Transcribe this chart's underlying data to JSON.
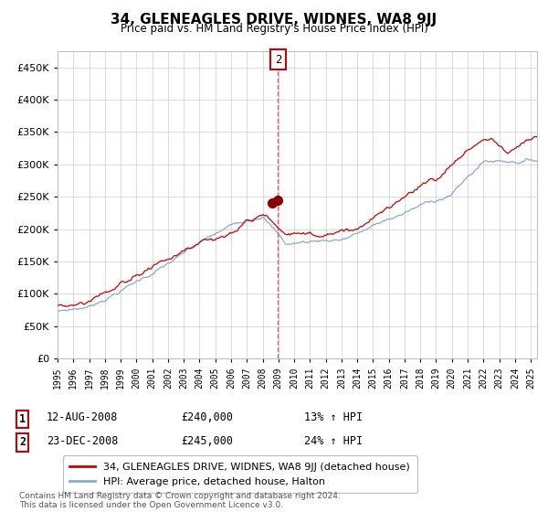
{
  "title": "34, GLENEAGLES DRIVE, WIDNES, WA8 9JJ",
  "subtitle": "Price paid vs. HM Land Registry's House Price Index (HPI)",
  "hpi_label": "HPI: Average price, detached house, Halton",
  "property_label": "34, GLENEAGLES DRIVE, WIDNES, WA8 9JJ (detached house)",
  "red_color": "#cc0000",
  "blue_color": "#88aacc",
  "dashed_color": "#dd4444",
  "annotation_box_color": "#cc0000",
  "background_color": "#ffffff",
  "grid_color": "#cccccc",
  "ylim": [
    0,
    475000
  ],
  "yticks": [
    0,
    50000,
    100000,
    150000,
    200000,
    250000,
    300000,
    350000,
    400000,
    450000
  ],
  "sale_date_1": 2008.617,
  "sale_date_2": 2008.981,
  "sale_price_1": 240000,
  "sale_price_2": 245000,
  "dashed_line_x": 2008.98,
  "annotation_box_label": "2",
  "xmin": 1995.0,
  "xmax": 2025.4,
  "xticks": [
    1995,
    1996,
    1997,
    1998,
    1999,
    2000,
    2001,
    2002,
    2003,
    2004,
    2005,
    2006,
    2007,
    2008,
    2009,
    2010,
    2011,
    2012,
    2013,
    2014,
    2015,
    2016,
    2017,
    2018,
    2019,
    2020,
    2021,
    2022,
    2023,
    2024,
    2025
  ],
  "footer": "Contains HM Land Registry data © Crown copyright and database right 2024.\nThis data is licensed under the Open Government Licence v3.0.",
  "row1_num": "1",
  "row1_date": "12-AUG-2008",
  "row1_price": "£240,000",
  "row1_hpi": "13% ↑ HPI",
  "row2_num": "2",
  "row2_date": "23-DEC-2008",
  "row2_price": "£245,000",
  "row2_hpi": "24% ↑ HPI"
}
